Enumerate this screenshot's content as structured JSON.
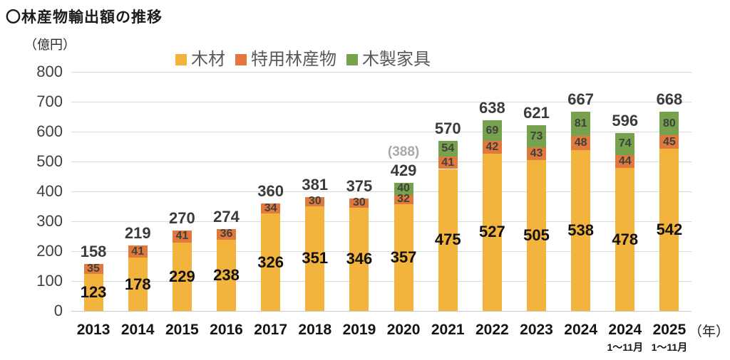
{
  "page": {
    "title": "〇林産物輸出額の推移",
    "unit_label": "（億円）",
    "year_suffix": "（年）"
  },
  "chart_data": {
    "type": "bar",
    "stacked": true,
    "title": "林産物輸出額の推移",
    "xlabel": "年",
    "ylabel": "億円",
    "ylim": [
      0,
      800
    ],
    "ytick_step": 100,
    "grid": true,
    "legend_position": "top",
    "categories": [
      "2013",
      "2014",
      "2015",
      "2016",
      "2017",
      "2018",
      "2019",
      "2020",
      "2021",
      "2022",
      "2023",
      "2024",
      "2024",
      "2025"
    ],
    "category_sublabels": [
      "",
      "",
      "",
      "",
      "",
      "",
      "",
      "",
      "",
      "",
      "",
      "",
      "1～11月",
      "1～11月"
    ],
    "series": [
      {
        "name": "木材",
        "color": "#F2B43C",
        "values": [
          123,
          178,
          229,
          238,
          326,
          351,
          346,
          357,
          475,
          527,
          505,
          538,
          478,
          542
        ]
      },
      {
        "name": "特用林産物",
        "color": "#E0793B",
        "values": [
          35,
          41,
          41,
          36,
          34,
          30,
          30,
          32,
          41,
          42,
          43,
          48,
          44,
          45
        ]
      },
      {
        "name": "木製家具",
        "color": "#76A24E",
        "values": [
          null,
          null,
          null,
          null,
          null,
          null,
          null,
          40,
          54,
          69,
          73,
          81,
          74,
          80
        ]
      }
    ],
    "totals": [
      158,
      219,
      270,
      274,
      360,
      381,
      375,
      429,
      570,
      638,
      621,
      667,
      596,
      668
    ],
    "annotations": [
      {
        "category_index": 7,
        "text": "(388)"
      }
    ]
  },
  "colors": {
    "grid": "#d9d9d9",
    "axis": "#c9c9c9",
    "total_label": "#3b3b3b",
    "annotation": "#a9a9a9",
    "legend_text": "#595959"
  }
}
